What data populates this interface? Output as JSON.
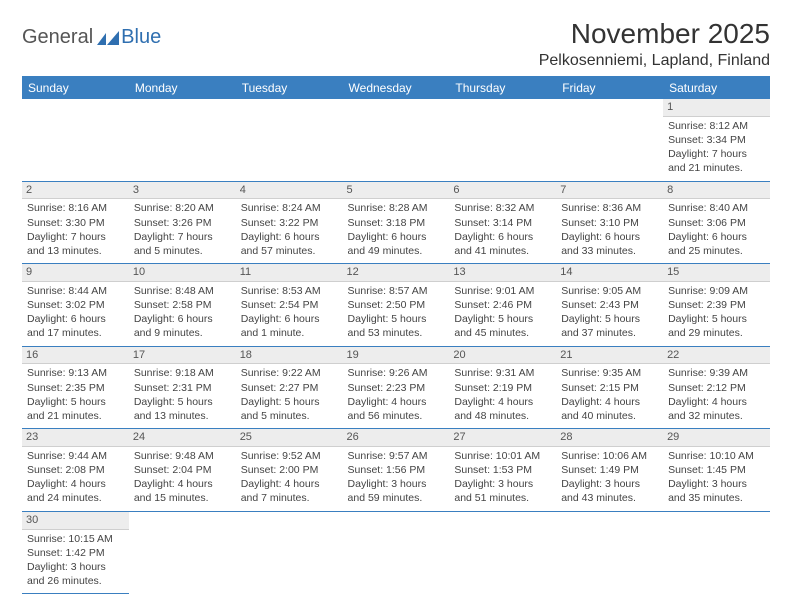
{
  "logo": {
    "general": "General",
    "blue": "Blue"
  },
  "title": "November 2025",
  "location": "Pelkosenniemi, Lapland, Finland",
  "colors": {
    "header_bg": "#3a7fc0",
    "header_text": "#ffffff",
    "daynum_bg": "#ededed",
    "border": "#3a7fc0",
    "logo_blue": "#2f6fb0"
  },
  "day_headers": [
    "Sunday",
    "Monday",
    "Tuesday",
    "Wednesday",
    "Thursday",
    "Friday",
    "Saturday"
  ],
  "weeks": [
    [
      null,
      null,
      null,
      null,
      null,
      null,
      {
        "n": "1",
        "sr": "Sunrise: 8:12 AM",
        "ss": "Sunset: 3:34 PM",
        "d1": "Daylight: 7 hours",
        "d2": "and 21 minutes."
      }
    ],
    [
      {
        "n": "2",
        "sr": "Sunrise: 8:16 AM",
        "ss": "Sunset: 3:30 PM",
        "d1": "Daylight: 7 hours",
        "d2": "and 13 minutes."
      },
      {
        "n": "3",
        "sr": "Sunrise: 8:20 AM",
        "ss": "Sunset: 3:26 PM",
        "d1": "Daylight: 7 hours",
        "d2": "and 5 minutes."
      },
      {
        "n": "4",
        "sr": "Sunrise: 8:24 AM",
        "ss": "Sunset: 3:22 PM",
        "d1": "Daylight: 6 hours",
        "d2": "and 57 minutes."
      },
      {
        "n": "5",
        "sr": "Sunrise: 8:28 AM",
        "ss": "Sunset: 3:18 PM",
        "d1": "Daylight: 6 hours",
        "d2": "and 49 minutes."
      },
      {
        "n": "6",
        "sr": "Sunrise: 8:32 AM",
        "ss": "Sunset: 3:14 PM",
        "d1": "Daylight: 6 hours",
        "d2": "and 41 minutes."
      },
      {
        "n": "7",
        "sr": "Sunrise: 8:36 AM",
        "ss": "Sunset: 3:10 PM",
        "d1": "Daylight: 6 hours",
        "d2": "and 33 minutes."
      },
      {
        "n": "8",
        "sr": "Sunrise: 8:40 AM",
        "ss": "Sunset: 3:06 PM",
        "d1": "Daylight: 6 hours",
        "d2": "and 25 minutes."
      }
    ],
    [
      {
        "n": "9",
        "sr": "Sunrise: 8:44 AM",
        "ss": "Sunset: 3:02 PM",
        "d1": "Daylight: 6 hours",
        "d2": "and 17 minutes."
      },
      {
        "n": "10",
        "sr": "Sunrise: 8:48 AM",
        "ss": "Sunset: 2:58 PM",
        "d1": "Daylight: 6 hours",
        "d2": "and 9 minutes."
      },
      {
        "n": "11",
        "sr": "Sunrise: 8:53 AM",
        "ss": "Sunset: 2:54 PM",
        "d1": "Daylight: 6 hours",
        "d2": "and 1 minute."
      },
      {
        "n": "12",
        "sr": "Sunrise: 8:57 AM",
        "ss": "Sunset: 2:50 PM",
        "d1": "Daylight: 5 hours",
        "d2": "and 53 minutes."
      },
      {
        "n": "13",
        "sr": "Sunrise: 9:01 AM",
        "ss": "Sunset: 2:46 PM",
        "d1": "Daylight: 5 hours",
        "d2": "and 45 minutes."
      },
      {
        "n": "14",
        "sr": "Sunrise: 9:05 AM",
        "ss": "Sunset: 2:43 PM",
        "d1": "Daylight: 5 hours",
        "d2": "and 37 minutes."
      },
      {
        "n": "15",
        "sr": "Sunrise: 9:09 AM",
        "ss": "Sunset: 2:39 PM",
        "d1": "Daylight: 5 hours",
        "d2": "and 29 minutes."
      }
    ],
    [
      {
        "n": "16",
        "sr": "Sunrise: 9:13 AM",
        "ss": "Sunset: 2:35 PM",
        "d1": "Daylight: 5 hours",
        "d2": "and 21 minutes."
      },
      {
        "n": "17",
        "sr": "Sunrise: 9:18 AM",
        "ss": "Sunset: 2:31 PM",
        "d1": "Daylight: 5 hours",
        "d2": "and 13 minutes."
      },
      {
        "n": "18",
        "sr": "Sunrise: 9:22 AM",
        "ss": "Sunset: 2:27 PM",
        "d1": "Daylight: 5 hours",
        "d2": "and 5 minutes."
      },
      {
        "n": "19",
        "sr": "Sunrise: 9:26 AM",
        "ss": "Sunset: 2:23 PM",
        "d1": "Daylight: 4 hours",
        "d2": "and 56 minutes."
      },
      {
        "n": "20",
        "sr": "Sunrise: 9:31 AM",
        "ss": "Sunset: 2:19 PM",
        "d1": "Daylight: 4 hours",
        "d2": "and 48 minutes."
      },
      {
        "n": "21",
        "sr": "Sunrise: 9:35 AM",
        "ss": "Sunset: 2:15 PM",
        "d1": "Daylight: 4 hours",
        "d2": "and 40 minutes."
      },
      {
        "n": "22",
        "sr": "Sunrise: 9:39 AM",
        "ss": "Sunset: 2:12 PM",
        "d1": "Daylight: 4 hours",
        "d2": "and 32 minutes."
      }
    ],
    [
      {
        "n": "23",
        "sr": "Sunrise: 9:44 AM",
        "ss": "Sunset: 2:08 PM",
        "d1": "Daylight: 4 hours",
        "d2": "and 24 minutes."
      },
      {
        "n": "24",
        "sr": "Sunrise: 9:48 AM",
        "ss": "Sunset: 2:04 PM",
        "d1": "Daylight: 4 hours",
        "d2": "and 15 minutes."
      },
      {
        "n": "25",
        "sr": "Sunrise: 9:52 AM",
        "ss": "Sunset: 2:00 PM",
        "d1": "Daylight: 4 hours",
        "d2": "and 7 minutes."
      },
      {
        "n": "26",
        "sr": "Sunrise: 9:57 AM",
        "ss": "Sunset: 1:56 PM",
        "d1": "Daylight: 3 hours",
        "d2": "and 59 minutes."
      },
      {
        "n": "27",
        "sr": "Sunrise: 10:01 AM",
        "ss": "Sunset: 1:53 PM",
        "d1": "Daylight: 3 hours",
        "d2": "and 51 minutes."
      },
      {
        "n": "28",
        "sr": "Sunrise: 10:06 AM",
        "ss": "Sunset: 1:49 PM",
        "d1": "Daylight: 3 hours",
        "d2": "and 43 minutes."
      },
      {
        "n": "29",
        "sr": "Sunrise: 10:10 AM",
        "ss": "Sunset: 1:45 PM",
        "d1": "Daylight: 3 hours",
        "d2": "and 35 minutes."
      }
    ],
    [
      {
        "n": "30",
        "sr": "Sunrise: 10:15 AM",
        "ss": "Sunset: 1:42 PM",
        "d1": "Daylight: 3 hours",
        "d2": "and 26 minutes."
      },
      null,
      null,
      null,
      null,
      null,
      null
    ]
  ]
}
